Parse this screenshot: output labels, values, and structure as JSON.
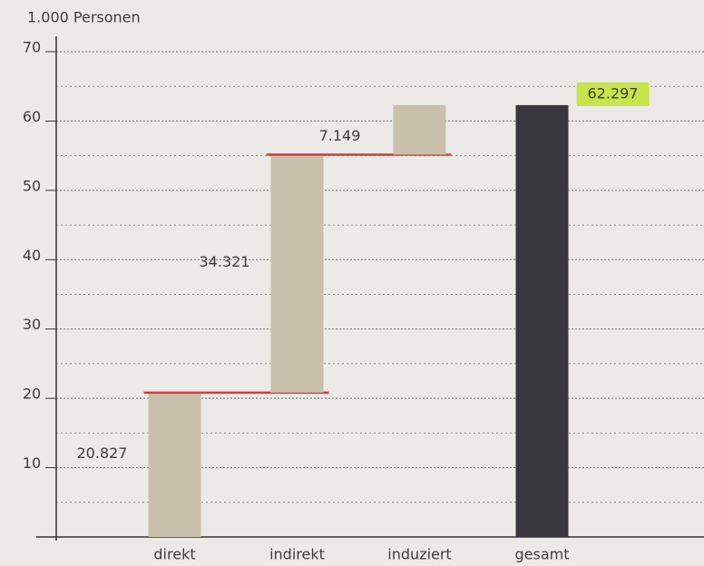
{
  "chart_data": {
    "type": "waterfall",
    "y_label": "1.000 Personen",
    "categories": [
      "direkt",
      "indirekt",
      "induziert",
      "gesamt"
    ],
    "values": [
      20.827,
      34.321,
      7.149,
      62.297
    ],
    "color": "#c8c0ab",
    "total_color": "#38373d",
    "connector_color": "#d63a3a",
    "total_label_highlight": "#c9e44a",
    "ylim": [
      0,
      70
    ],
    "yticks": [
      10,
      20,
      30,
      40,
      50,
      60,
      70
    ],
    "minor_yticks": [
      5,
      15,
      25,
      35,
      45,
      55,
      65
    ],
    "grid": true
  }
}
